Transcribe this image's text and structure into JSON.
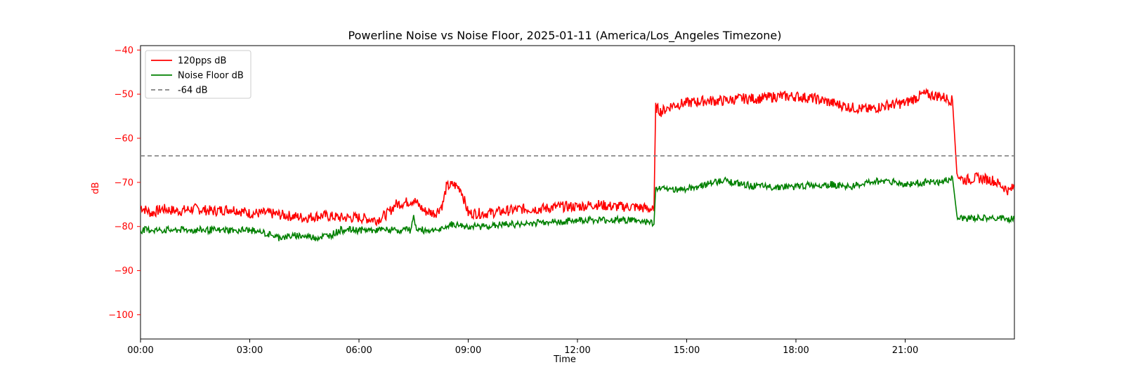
{
  "chart_data": {
    "type": "line",
    "title": "Powerline Noise vs Noise Floor, 2025-01-11 (America/Los_Angeles Timezone)",
    "xlabel": "Time",
    "ylabel": "dB",
    "x_unit": "hours",
    "xlim": [
      0,
      24
    ],
    "ylim": [
      -105.5,
      -39
    ],
    "x_ticks": [
      0,
      3,
      6,
      9,
      12,
      15,
      18,
      21
    ],
    "x_tick_labels": [
      "00:00",
      "03:00",
      "06:00",
      "09:00",
      "12:00",
      "15:00",
      "18:00",
      "21:00"
    ],
    "y_ticks": [
      -40,
      -50,
      -60,
      -70,
      -80,
      -90,
      -100
    ],
    "y_tick_labels": [
      "−40",
      "−50",
      "−60",
      "−70",
      "−80",
      "−90",
      "−100"
    ],
    "grid": false,
    "legend_position": "top-left",
    "series": [
      {
        "name": "120pps dB",
        "color": "#ff0000",
        "style": "solid",
        "points": [
          [
            0,
            -75.5
          ],
          [
            0.3,
            -77
          ],
          [
            0.6,
            -76
          ],
          [
            1.0,
            -76.5
          ],
          [
            1.5,
            -76
          ],
          [
            2.0,
            -76.5
          ],
          [
            2.5,
            -76
          ],
          [
            3.0,
            -77
          ],
          [
            3.5,
            -77
          ],
          [
            4.0,
            -77.5
          ],
          [
            4.5,
            -78
          ],
          [
            5.0,
            -77.5
          ],
          [
            5.5,
            -78
          ],
          [
            6.0,
            -78
          ],
          [
            6.5,
            -78.5
          ],
          [
            6.8,
            -77
          ],
          [
            7.0,
            -75
          ],
          [
            7.3,
            -74.5
          ],
          [
            7.5,
            -74
          ],
          [
            7.8,
            -76.5
          ],
          [
            8.1,
            -77
          ],
          [
            8.3,
            -75
          ],
          [
            8.4,
            -71
          ],
          [
            8.6,
            -70.5
          ],
          [
            8.8,
            -71.5
          ],
          [
            9.0,
            -77
          ],
          [
            9.5,
            -77
          ],
          [
            10.0,
            -76.5
          ],
          [
            10.5,
            -76
          ],
          [
            11.0,
            -76
          ],
          [
            11.5,
            -75.5
          ],
          [
            12.0,
            -75.5
          ],
          [
            12.5,
            -75
          ],
          [
            13.0,
            -75.5
          ],
          [
            13.5,
            -75.5
          ],
          [
            14.0,
            -76
          ],
          [
            14.1,
            -76.5
          ],
          [
            14.15,
            -53
          ],
          [
            14.3,
            -54
          ],
          [
            14.6,
            -52.5
          ],
          [
            15.0,
            -52
          ],
          [
            15.5,
            -51.5
          ],
          [
            16.0,
            -51.5
          ],
          [
            16.5,
            -51
          ],
          [
            17.0,
            -51
          ],
          [
            17.5,
            -50.5
          ],
          [
            18.0,
            -50.5
          ],
          [
            18.5,
            -51
          ],
          [
            19.0,
            -52
          ],
          [
            19.5,
            -53
          ],
          [
            20.0,
            -53.5
          ],
          [
            20.5,
            -52.5
          ],
          [
            21.0,
            -52
          ],
          [
            21.5,
            -50
          ],
          [
            22.0,
            -50.5
          ],
          [
            22.3,
            -51.5
          ],
          [
            22.42,
            -68
          ],
          [
            22.6,
            -69.5
          ],
          [
            23.0,
            -69
          ],
          [
            23.4,
            -69.5
          ],
          [
            23.7,
            -71
          ],
          [
            23.85,
            -72
          ],
          [
            24.0,
            -71
          ]
        ]
      },
      {
        "name": "Noise Floor dB",
        "color": "#008000",
        "style": "solid",
        "points": [
          [
            0,
            -80.8
          ],
          [
            1.0,
            -80.8
          ],
          [
            2.0,
            -80.8
          ],
          [
            3.0,
            -80.8
          ],
          [
            3.4,
            -81.5
          ],
          [
            3.8,
            -82.5
          ],
          [
            4.3,
            -82
          ],
          [
            4.8,
            -82.5
          ],
          [
            5.2,
            -82
          ],
          [
            5.5,
            -80.8
          ],
          [
            6.0,
            -80.8
          ],
          [
            7.0,
            -80.8
          ],
          [
            7.4,
            -80.8
          ],
          [
            7.5,
            -78
          ],
          [
            7.6,
            -80.8
          ],
          [
            8.3,
            -80.8
          ],
          [
            8.5,
            -79.5
          ],
          [
            9.0,
            -80
          ],
          [
            9.5,
            -80
          ],
          [
            10.0,
            -79.5
          ],
          [
            10.5,
            -79.5
          ],
          [
            11.0,
            -79
          ],
          [
            11.5,
            -79
          ],
          [
            12.0,
            -78.5
          ],
          [
            12.5,
            -78.5
          ],
          [
            13.0,
            -78.5
          ],
          [
            13.5,
            -78.5
          ],
          [
            14.0,
            -79
          ],
          [
            14.1,
            -79.5
          ],
          [
            14.15,
            -71.5
          ],
          [
            14.5,
            -71.5
          ],
          [
            15.0,
            -71.5
          ],
          [
            15.5,
            -70.5
          ],
          [
            16.0,
            -69.5
          ],
          [
            16.5,
            -70.5
          ],
          [
            17.0,
            -71
          ],
          [
            17.5,
            -71
          ],
          [
            18.0,
            -71
          ],
          [
            18.5,
            -70.5
          ],
          [
            19.0,
            -70.5
          ],
          [
            19.5,
            -71
          ],
          [
            20.0,
            -70
          ],
          [
            20.5,
            -69.5
          ],
          [
            21.0,
            -70.5
          ],
          [
            21.5,
            -70
          ],
          [
            22.0,
            -70
          ],
          [
            22.3,
            -69
          ],
          [
            22.42,
            -78.2
          ],
          [
            23.0,
            -78.2
          ],
          [
            23.5,
            -78.2
          ],
          [
            24.0,
            -78.2
          ]
        ]
      },
      {
        "name": "-64 dB",
        "color": "#808080",
        "style": "dashed",
        "points": [
          [
            0,
            -64
          ],
          [
            24,
            -64
          ]
        ]
      }
    ]
  }
}
